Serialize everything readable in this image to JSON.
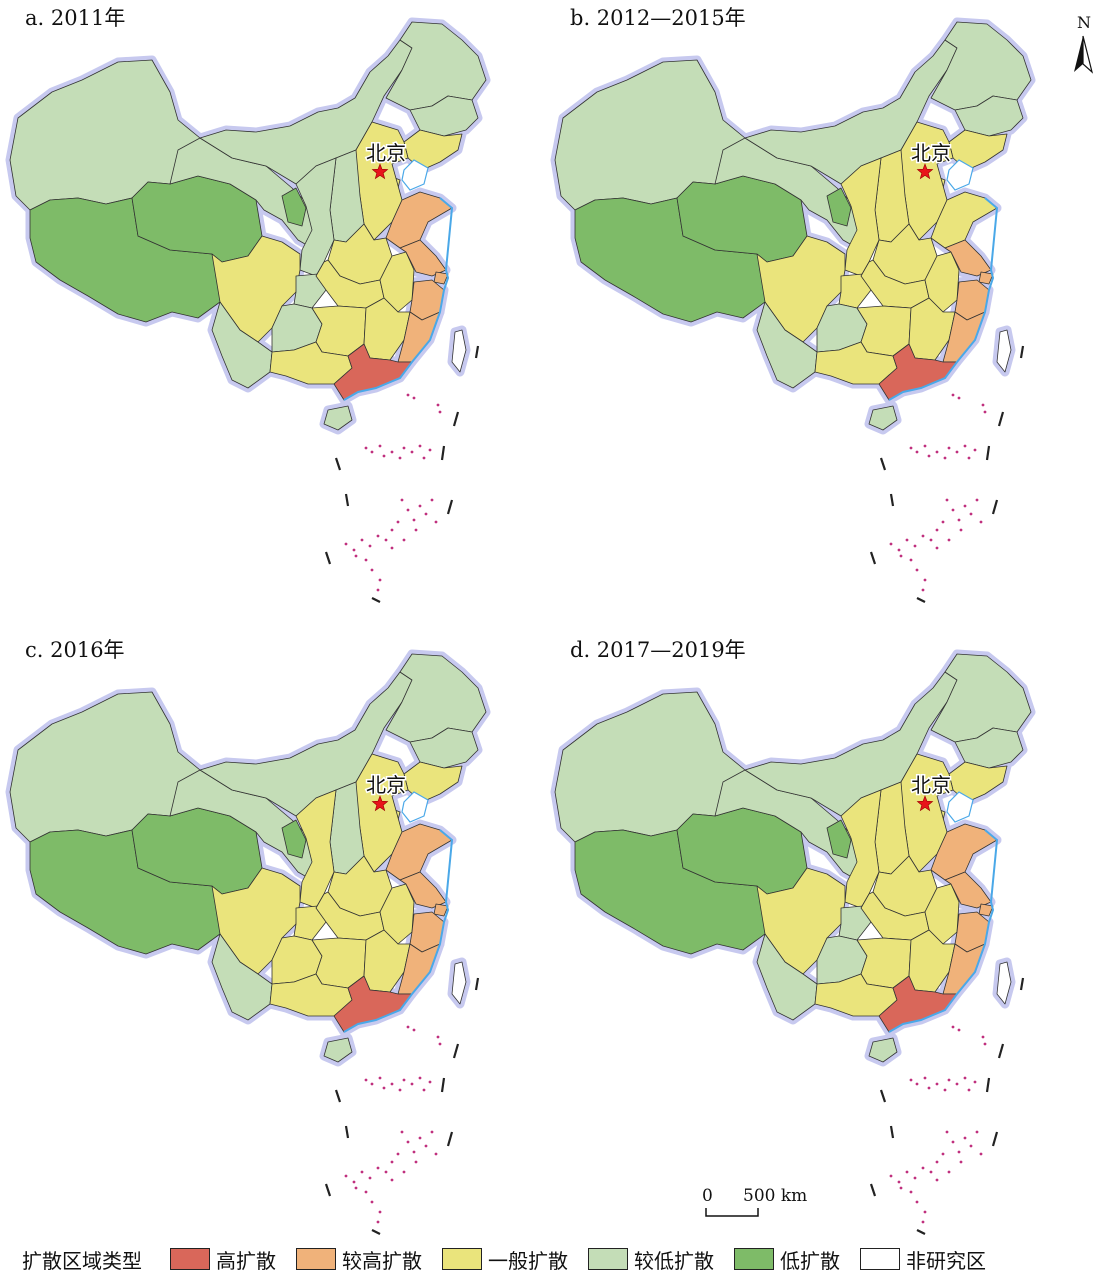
{
  "capital": "北京",
  "north": "N",
  "scale": {
    "start": "0",
    "end": "500 km"
  },
  "colors": {
    "high": "#D9675A",
    "mid_high": "#F0B27A",
    "general": "#EAE47C",
    "low_mid": "#C4DDB7",
    "low": "#7EBB68",
    "non_study": "#FFFFFF"
  },
  "legend": {
    "title": "扩散区域类型",
    "items": [
      {
        "key": "high",
        "label": "高扩散"
      },
      {
        "key": "mid_high",
        "label": "较高扩散"
      },
      {
        "key": "general",
        "label": "一般扩散"
      },
      {
        "key": "low_mid",
        "label": "较低扩散"
      },
      {
        "key": "low",
        "label": "低扩散"
      },
      {
        "key": "non_study",
        "label": "非研究区"
      }
    ]
  },
  "panels": [
    {
      "title": "a. 2011年",
      "regions": {
        "xinjiang": "low_mid",
        "tibet": "low",
        "qinghai": "low",
        "gansu": "low_mid",
        "ningxia": "low",
        "neimenggu": "low_mid",
        "heilongjiang": "low_mid",
        "jilin": "low_mid",
        "liaoning": "general",
        "beijing": "general",
        "tianjin": "general",
        "hebei": "general",
        "shanxi": "low_mid",
        "shaanxi": "low_mid",
        "shandong": "mid_high",
        "henan": "general",
        "sichuan": "general",
        "chongqing": "low_mid",
        "hubei": "general",
        "anhui": "general",
        "jiangsu": "mid_high",
        "shanghai": "mid_high",
        "zhejiang": "mid_high",
        "yunnan": "low_mid",
        "guizhou": "low_mid",
        "hunan": "general",
        "jiangxi": "general",
        "fujian": "mid_high",
        "guangxi": "general",
        "guangdong": "high",
        "hainan": "low_mid",
        "taiwan": "non_study"
      }
    },
    {
      "title": "b. 2012—2015年",
      "regions": {
        "xinjiang": "low_mid",
        "tibet": "low",
        "qinghai": "low",
        "gansu": "low_mid",
        "ningxia": "low",
        "neimenggu": "low_mid",
        "heilongjiang": "low_mid",
        "jilin": "low_mid",
        "liaoning": "general",
        "beijing": "general",
        "tianjin": "general",
        "hebei": "general",
        "shanxi": "general",
        "shaanxi": "general",
        "shandong": "general",
        "henan": "general",
        "sichuan": "general",
        "chongqing": "general",
        "hubei": "general",
        "anhui": "general",
        "jiangsu": "mid_high",
        "shanghai": "mid_high",
        "zhejiang": "mid_high",
        "yunnan": "low_mid",
        "guizhou": "low_mid",
        "hunan": "general",
        "jiangxi": "general",
        "fujian": "mid_high",
        "guangxi": "general",
        "guangdong": "high",
        "hainan": "low_mid",
        "taiwan": "non_study"
      }
    },
    {
      "title": "c. 2016年",
      "regions": {
        "xinjiang": "low_mid",
        "tibet": "low",
        "qinghai": "low",
        "gansu": "low_mid",
        "ningxia": "low",
        "neimenggu": "low_mid",
        "heilongjiang": "low_mid",
        "jilin": "low_mid",
        "liaoning": "general",
        "beijing": "general",
        "tianjin": "general",
        "hebei": "general",
        "shanxi": "low_mid",
        "shaanxi": "general",
        "shandong": "mid_high",
        "henan": "general",
        "sichuan": "general",
        "chongqing": "general",
        "hubei": "general",
        "anhui": "general",
        "jiangsu": "mid_high",
        "shanghai": "mid_high",
        "zhejiang": "mid_high",
        "yunnan": "low_mid",
        "guizhou": "general",
        "hunan": "general",
        "jiangxi": "general",
        "fujian": "mid_high",
        "guangxi": "general",
        "guangdong": "high",
        "hainan": "low_mid",
        "taiwan": "non_study"
      }
    },
    {
      "title": "d. 2017—2019年",
      "regions": {
        "xinjiang": "low_mid",
        "tibet": "low",
        "qinghai": "low",
        "gansu": "low_mid",
        "ningxia": "low",
        "neimenggu": "low_mid",
        "heilongjiang": "low_mid",
        "jilin": "low_mid",
        "liaoning": "general",
        "beijing": "general",
        "tianjin": "general",
        "hebei": "general",
        "shanxi": "general",
        "shaanxi": "general",
        "shandong": "mid_high",
        "henan": "general",
        "sichuan": "general",
        "chongqing": "low_mid",
        "hubei": "general",
        "anhui": "general",
        "jiangsu": "mid_high",
        "shanghai": "mid_high",
        "zhejiang": "mid_high",
        "yunnan": "low_mid",
        "guizhou": "low_mid",
        "hunan": "general",
        "jiangxi": "general",
        "fujian": "mid_high",
        "guangxi": "general",
        "guangdong": "high",
        "hainan": "low_mid",
        "taiwan": "non_study"
      }
    }
  ]
}
